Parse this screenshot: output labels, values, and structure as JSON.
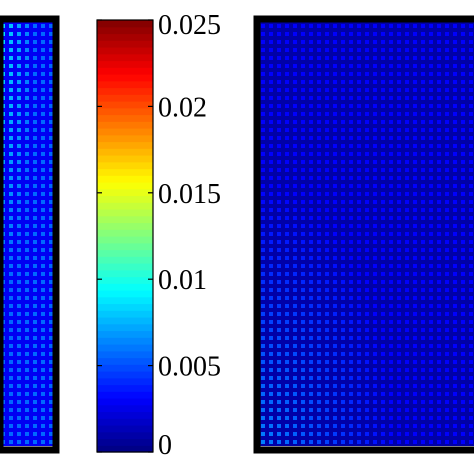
{
  "chart_data": {
    "type": "heatmap",
    "title": "",
    "xlabel": "",
    "ylabel": "",
    "colormap": "jet",
    "colorbar": {
      "range": [
        0,
        0.025
      ],
      "ticks": [
        {
          "value": 0,
          "label": "0"
        },
        {
          "value": 0.005,
          "label": "0.005"
        },
        {
          "value": 0.01,
          "label": "0.01"
        },
        {
          "value": 0.015,
          "label": "0.015"
        },
        {
          "value": 0.02,
          "label": "0.02"
        },
        {
          "value": 0.025,
          "label": "0.025"
        }
      ]
    },
    "panels": [
      {
        "name": "left-panel",
        "field": {
          "base": 0.0035,
          "cell_peak": 0.0075,
          "corner_peak": 0.0105,
          "hot_corner": "top-left"
        }
      },
      {
        "name": "right-panel",
        "field": {
          "base": 0.0012,
          "cell_peak": 0.0046,
          "corner_peak": 0.0078,
          "hot_corner": "bottom-left"
        }
      }
    ]
  }
}
